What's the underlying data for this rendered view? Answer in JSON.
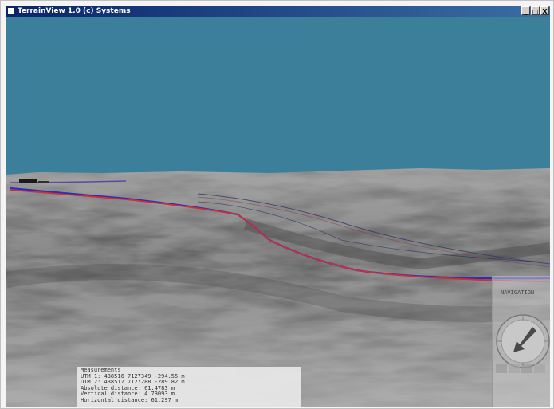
{
  "window": {
    "title": "TerrainView 1.0 (c) Systems",
    "buttons": [
      "_",
      "□",
      "X"
    ]
  },
  "colors": {
    "sky": "#3b7f9b",
    "terrain": "#6e6e6e",
    "track_red": "#cc2f3a",
    "track_blue": "#2a2fb3",
    "panel": "#e8e8e8"
  },
  "measurements": {
    "title": "Measurements",
    "lines": [
      "UTM 1: 438516 7127349 -294.55 m",
      "UTM 2: 438517 7127288 -289.82 m",
      "Absolute distance: 61.4783 m",
      "Vertical distance: 4.73093 m",
      "Horizontal distance: 61.297 m"
    ]
  },
  "navigation": {
    "title": "NAVIGATION",
    "compass_icon": "compass-arrow-icon"
  }
}
